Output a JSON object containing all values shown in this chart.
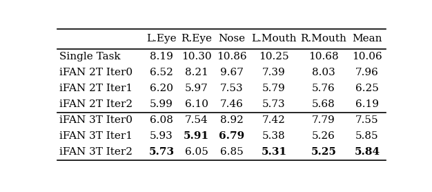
{
  "columns": [
    "",
    "L.Eye",
    "R.Eye",
    "Nose",
    "L.Mouth",
    "R.Mouth",
    "Mean"
  ],
  "rows": [
    {
      "label": "Single Task",
      "values": [
        "8.19",
        "10.30",
        "10.86",
        "10.25",
        "10.68",
        "10.06"
      ],
      "bold": [
        false,
        false,
        false,
        false,
        false,
        false
      ]
    },
    {
      "label": "iFAN 2T Iter0",
      "values": [
        "6.52",
        "8.21",
        "9.67",
        "7.39",
        "8.03",
        "7.96"
      ],
      "bold": [
        false,
        false,
        false,
        false,
        false,
        false
      ]
    },
    {
      "label": "iFAN 2T Iter1",
      "values": [
        "6.20",
        "5.97",
        "7.53",
        "5.79",
        "5.76",
        "6.25"
      ],
      "bold": [
        false,
        false,
        false,
        false,
        false,
        false
      ]
    },
    {
      "label": "iFAN 2T Iter2",
      "values": [
        "5.99",
        "6.10",
        "7.46",
        "5.73",
        "5.68",
        "6.19"
      ],
      "bold": [
        false,
        false,
        false,
        false,
        false,
        false
      ]
    },
    {
      "label": "iFAN 3T Iter0",
      "values": [
        "6.08",
        "7.54",
        "8.92",
        "7.42",
        "7.79",
        "7.55"
      ],
      "bold": [
        false,
        false,
        false,
        false,
        false,
        false
      ]
    },
    {
      "label": "iFAN 3T Iter1",
      "values": [
        "5.93",
        "5.91",
        "6.79",
        "5.38",
        "5.26",
        "5.85"
      ],
      "bold": [
        false,
        true,
        true,
        false,
        false,
        false
      ]
    },
    {
      "label": "iFAN 3T Iter2",
      "values": [
        "5.73",
        "6.05",
        "6.85",
        "5.31",
        "5.25",
        "5.84"
      ],
      "bold": [
        true,
        false,
        false,
        true,
        true,
        true
      ]
    }
  ],
  "background_color": "#ffffff",
  "font_size": 11,
  "header_font_size": 11
}
